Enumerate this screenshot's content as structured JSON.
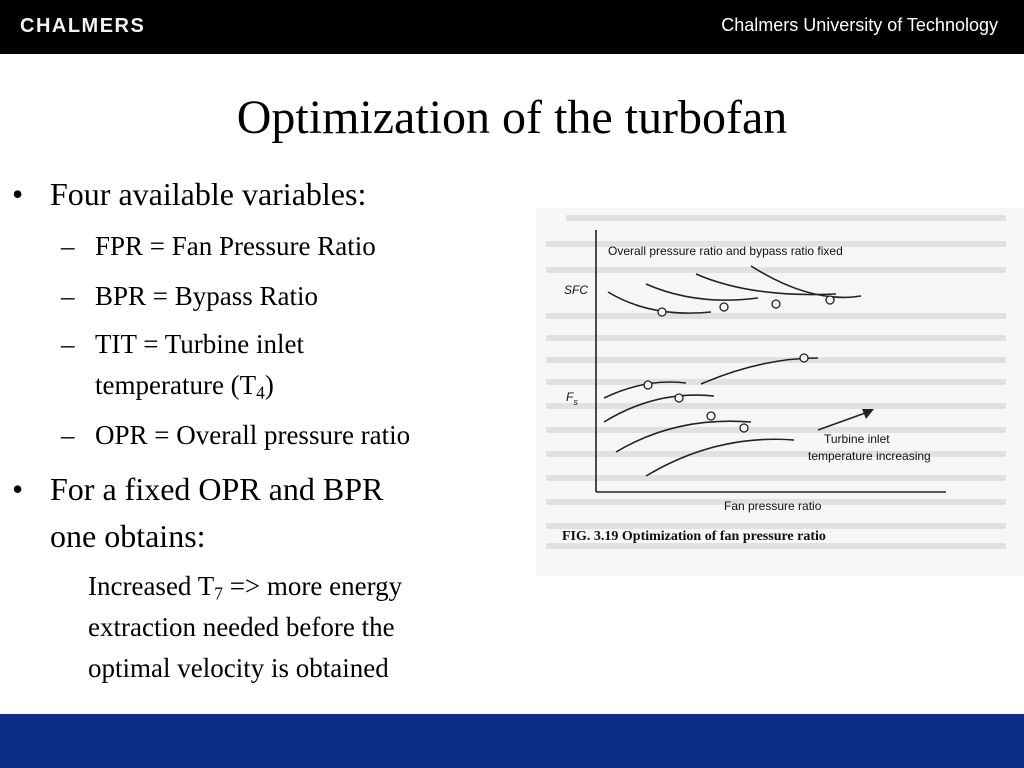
{
  "header": {
    "logo": "CHALMERS",
    "university": "Chalmers University of Technology"
  },
  "slide": {
    "title": "Optimization of the turbofan",
    "bullet1": "Four available variables:",
    "sub1": "FPR = Fan Pressure Ratio",
    "sub2": "BPR = Bypass Ratio",
    "sub3_line1": "TIT = Turbine inlet",
    "sub3_line2_pre": "temperature (T",
    "sub3_line2_sub": "4",
    "sub3_line2_post": ")",
    "sub4": "OPR = Overall pressure ratio",
    "bullet2_line1": "For a fixed OPR and BPR",
    "bullet2_line2": "one obtains:",
    "note_line1_pre": "Increased T",
    "note_line1_sub": "7",
    "note_line1_post": " => more energy",
    "note_line2": "extraction needed before the",
    "note_line3": "optimal velocity is obtained",
    "bullet_glyph": "•",
    "dash_glyph": "–"
  },
  "figure": {
    "top_label": "Overall pressure ratio and bypass ratio fixed",
    "sfc_label": "SFC",
    "fs_label": "F",
    "fs_sub": "s",
    "arrow_label_1": "Turbine inlet",
    "arrow_label_2": "temperature increasing",
    "x_label": "Fan pressure ratio",
    "caption": "FIG. 3.19  Optimization of fan pressure ratio"
  },
  "colors": {
    "header_bg": "#000000",
    "footer_bg": "#0c2c87"
  }
}
